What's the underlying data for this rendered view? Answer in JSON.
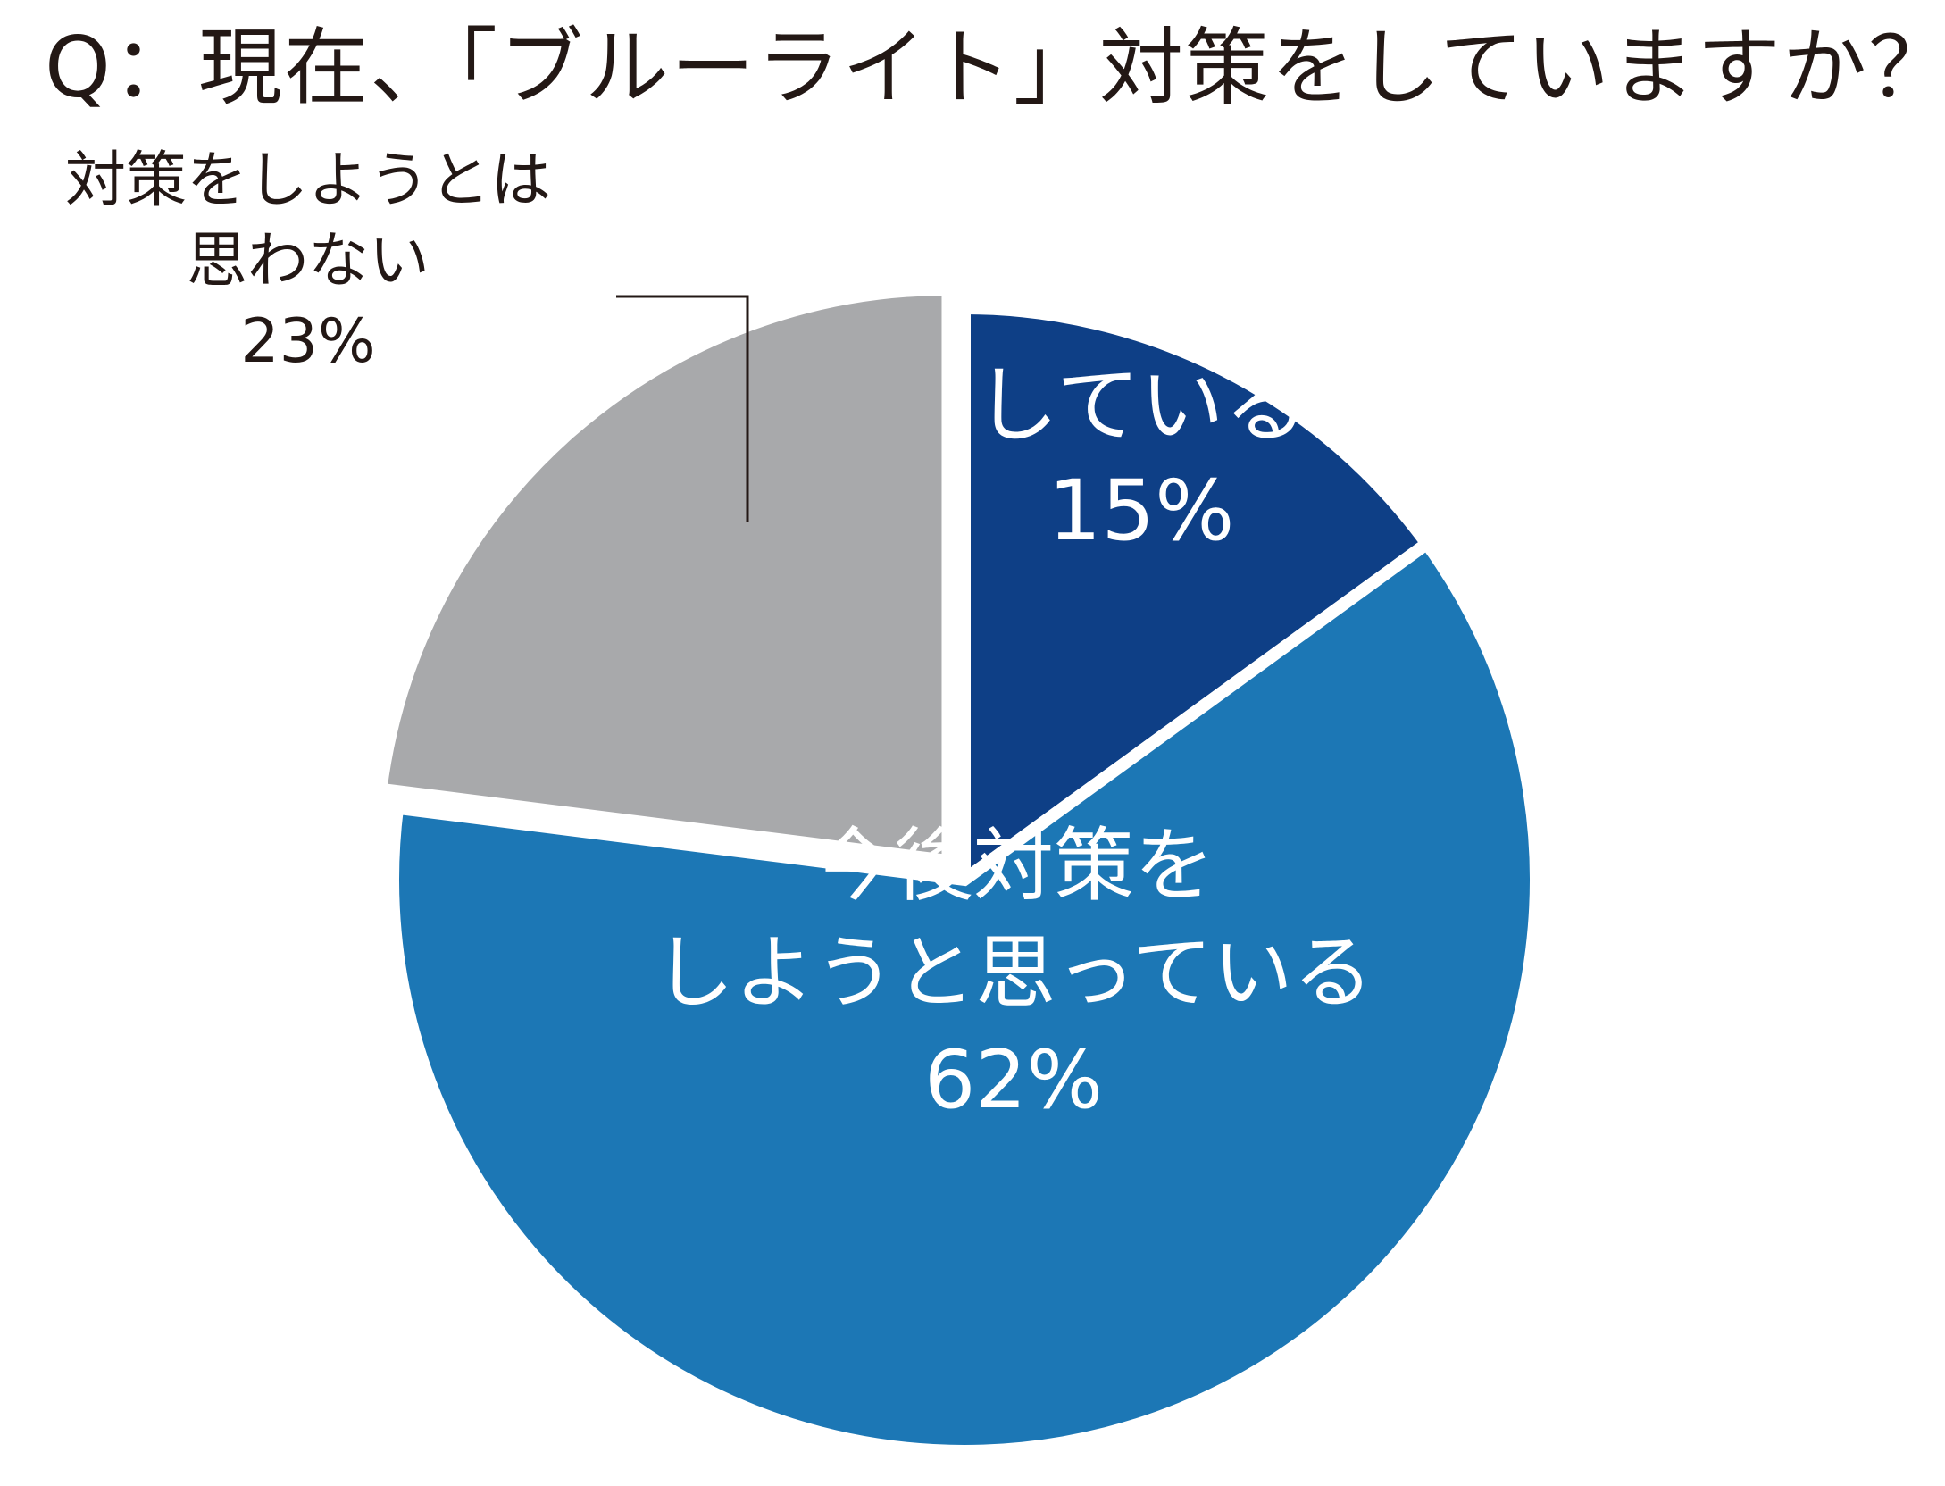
{
  "chart_data": {
    "type": "pie",
    "title": "Q：現在、「ブルーライト」対策をしていますか？",
    "slices": [
      {
        "label_lines": [
          "している"
        ],
        "value": 15,
        "value_label": "15%",
        "color": "#0e3f86",
        "label_color": "#ffffff"
      },
      {
        "label_lines": [
          "今後対策を",
          "しようと思っている"
        ],
        "value": 62,
        "value_label": "62%",
        "color": "#1c77b5",
        "label_color": "#ffffff"
      },
      {
        "label_lines": [
          "対策をしようとは",
          "思わない"
        ],
        "value": 23,
        "value_label": "23%",
        "color": "#a8a9ab",
        "label_color": "#231815"
      }
    ],
    "start": "12 o'clock",
    "direction": "clockwise",
    "legend": "none"
  }
}
